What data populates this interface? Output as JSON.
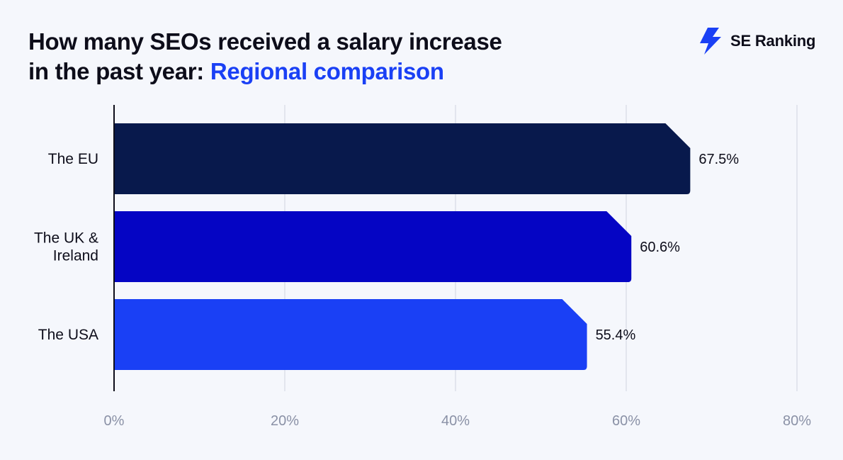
{
  "title": {
    "line1": "How many SEOs received a salary increase",
    "line2_plain": "in the past year: ",
    "line2_highlight": "Regional comparison"
  },
  "logo": {
    "text": "SE Ranking",
    "icon": "lightning-bolt-icon"
  },
  "colors": {
    "background": "#f5f7fc",
    "title": "#0d0d1a",
    "highlight": "#1a40f5",
    "grid": "#dcdfea",
    "axis": "#0d0d1a",
    "tick": "#8a91a6"
  },
  "chart_data": {
    "type": "bar",
    "orientation": "horizontal",
    "categories": [
      "The EU",
      "The UK & Ireland",
      "The USA"
    ],
    "category_lines": [
      [
        "The EU"
      ],
      [
        "The UK &",
        "Ireland"
      ],
      [
        "The USA"
      ]
    ],
    "values": [
      67.5,
      60.6,
      55.4
    ],
    "value_labels": [
      "67.5%",
      "60.6%",
      "55.4%"
    ],
    "bar_colors": [
      "#08194c",
      "#0505c4",
      "#1a40f5"
    ],
    "xlim": [
      0,
      80
    ],
    "xticks": [
      0,
      20,
      40,
      60,
      80
    ],
    "xtick_labels": [
      "0%",
      "20%",
      "40%",
      "60%",
      "80%"
    ],
    "xlabel": "",
    "ylabel": "",
    "grid": true
  }
}
